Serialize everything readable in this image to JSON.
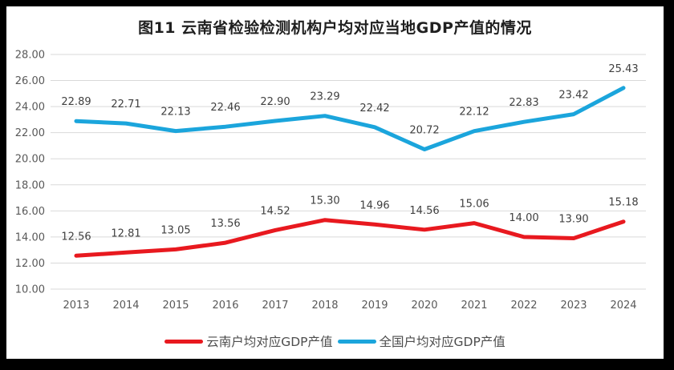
{
  "page": {
    "background": "#000000",
    "card_background": "#ffffff"
  },
  "chart_data": {
    "type": "line",
    "title": "图11 云南省检验检测机构户均对应当地GDP产值的情况",
    "categories": [
      "2013",
      "2014",
      "2015",
      "2016",
      "2017",
      "2018",
      "2019",
      "2020",
      "2021",
      "2022",
      "2023",
      "2024"
    ],
    "series": [
      {
        "name": "云南户均对应GDP产值",
        "color": "#e8191f",
        "values": [
          12.56,
          12.81,
          13.05,
          13.56,
          14.52,
          15.3,
          14.96,
          14.56,
          15.06,
          14.0,
          13.9,
          15.18
        ]
      },
      {
        "name": "全国户均对应GDP产值",
        "color": "#1ba5dc",
        "values": [
          22.89,
          22.71,
          22.13,
          22.46,
          22.9,
          23.29,
          22.42,
          20.72,
          22.12,
          22.83,
          23.42,
          25.43
        ]
      }
    ],
    "ylim": [
      10,
      28
    ],
    "ytick_step": 2,
    "ytick_labels": [
      "10.00",
      "12.00",
      "14.00",
      "16.00",
      "18.00",
      "20.00",
      "22.00",
      "24.00",
      "26.00",
      "28.00"
    ],
    "grid": "horizontal",
    "gridline_color": "#d9d9d9",
    "axis_label_color": "#595959",
    "data_label_color": "#404040",
    "data_labels": true,
    "legend_position": "bottom"
  }
}
